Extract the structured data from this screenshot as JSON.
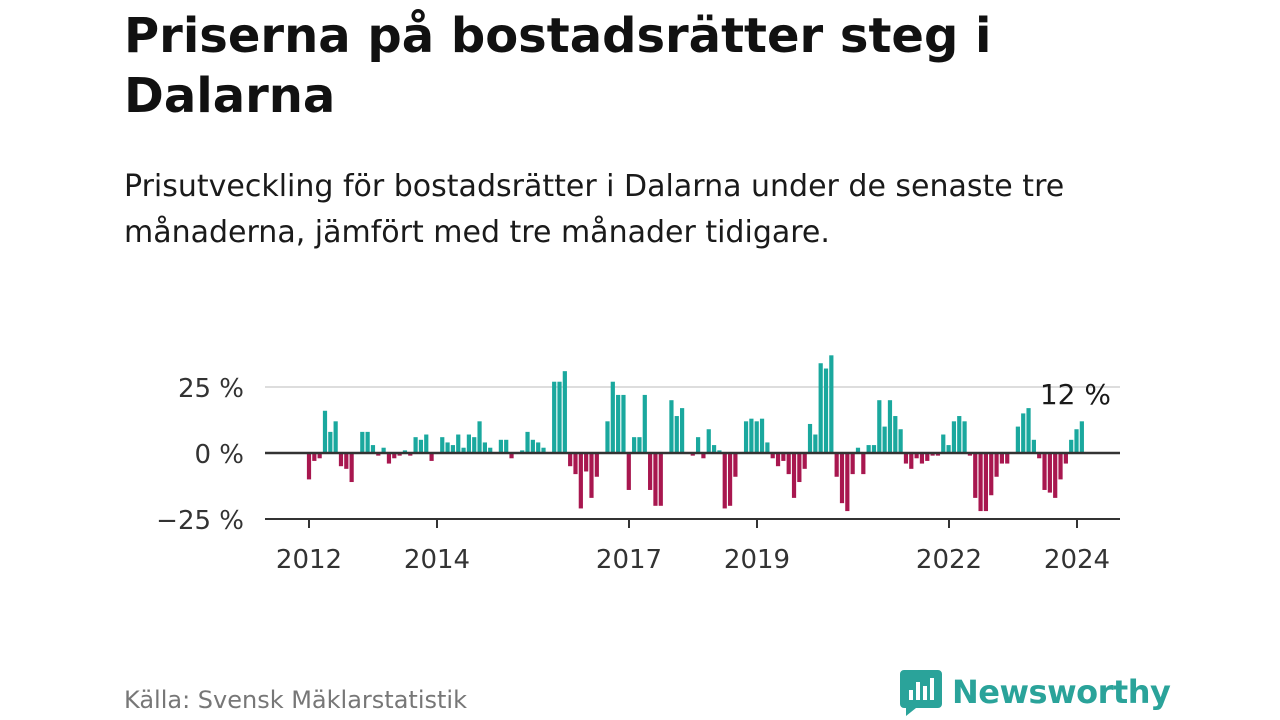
{
  "header": {
    "title": "Priserna på bostadsrätter steg i Dalarna",
    "subtitle": "Prisutveckling för bostadsrätter i Dalarna under de senaste tre månaderna, jämfört med tre månader tidigare."
  },
  "footer": {
    "source": "Källa: Svensk Mäklarstatistik",
    "brand": "Newsworthy"
  },
  "colors": {
    "positive": "#1aa89e",
    "negative": "#a8174f",
    "zero_line": "#333333",
    "grid": "#dddddd",
    "axis": "#333333",
    "brand": "#2aa39a"
  },
  "chart_data": {
    "type": "bar",
    "title": "Prisutveckling för bostadsrätter i Dalarna",
    "xlabel": "",
    "ylabel": "",
    "unit": "%",
    "x_start": 2012.0,
    "x_step_per_month": 0.08333,
    "ylim": [
      -25,
      37
    ],
    "yticks": [
      {
        "value": 25,
        "label": "25 %"
      },
      {
        "value": 0,
        "label": "0 %"
      },
      {
        "value": -25,
        "label": "−25 %"
      }
    ],
    "xticks": [
      {
        "year": 2012,
        "label": "2012"
      },
      {
        "year": 2014,
        "label": "2014"
      },
      {
        "year": 2017,
        "label": "2017"
      },
      {
        "year": 2019,
        "label": "2019"
      },
      {
        "year": 2022,
        "label": "2022"
      },
      {
        "year": 2024,
        "label": "2024"
      }
    ],
    "last_value_label": "12 %",
    "values": [
      -10,
      -3,
      -2,
      16,
      8,
      12,
      -5,
      -6,
      -11,
      0,
      8,
      8,
      3,
      -1,
      2,
      -4,
      -2,
      -1,
      1,
      -1,
      6,
      5,
      7,
      -3,
      0,
      6,
      4,
      3,
      7,
      2,
      7,
      6,
      12,
      4,
      2,
      0,
      5,
      5,
      -2,
      0,
      1,
      8,
      5,
      4,
      2,
      0,
      27,
      27,
      31,
      -5,
      -8,
      -21,
      -7,
      -17,
      -9,
      0,
      12,
      27,
      22,
      22,
      -14,
      6,
      6,
      22,
      -14,
      -20,
      -20,
      0,
      20,
      14,
      17,
      0,
      -1,
      6,
      -2,
      9,
      3,
      1,
      -21,
      -20,
      -9,
      0,
      12,
      13,
      12,
      13,
      4,
      -2,
      -5,
      -3,
      -8,
      -17,
      -11,
      -6,
      11,
      7,
      34,
      32,
      37,
      -9,
      -19,
      -22,
      -8,
      2,
      -8,
      3,
      3,
      20,
      10,
      20,
      14,
      9,
      -4,
      -6,
      -2,
      -4,
      -3,
      -1,
      -1,
      7,
      3,
      12,
      14,
      12,
      -1,
      -17,
      -22,
      -22,
      -16,
      -9,
      -4,
      -4,
      0,
      10,
      15,
      17,
      5,
      -2,
      -14,
      -15,
      -17,
      -10,
      -4,
      5,
      9,
      12
    ]
  }
}
